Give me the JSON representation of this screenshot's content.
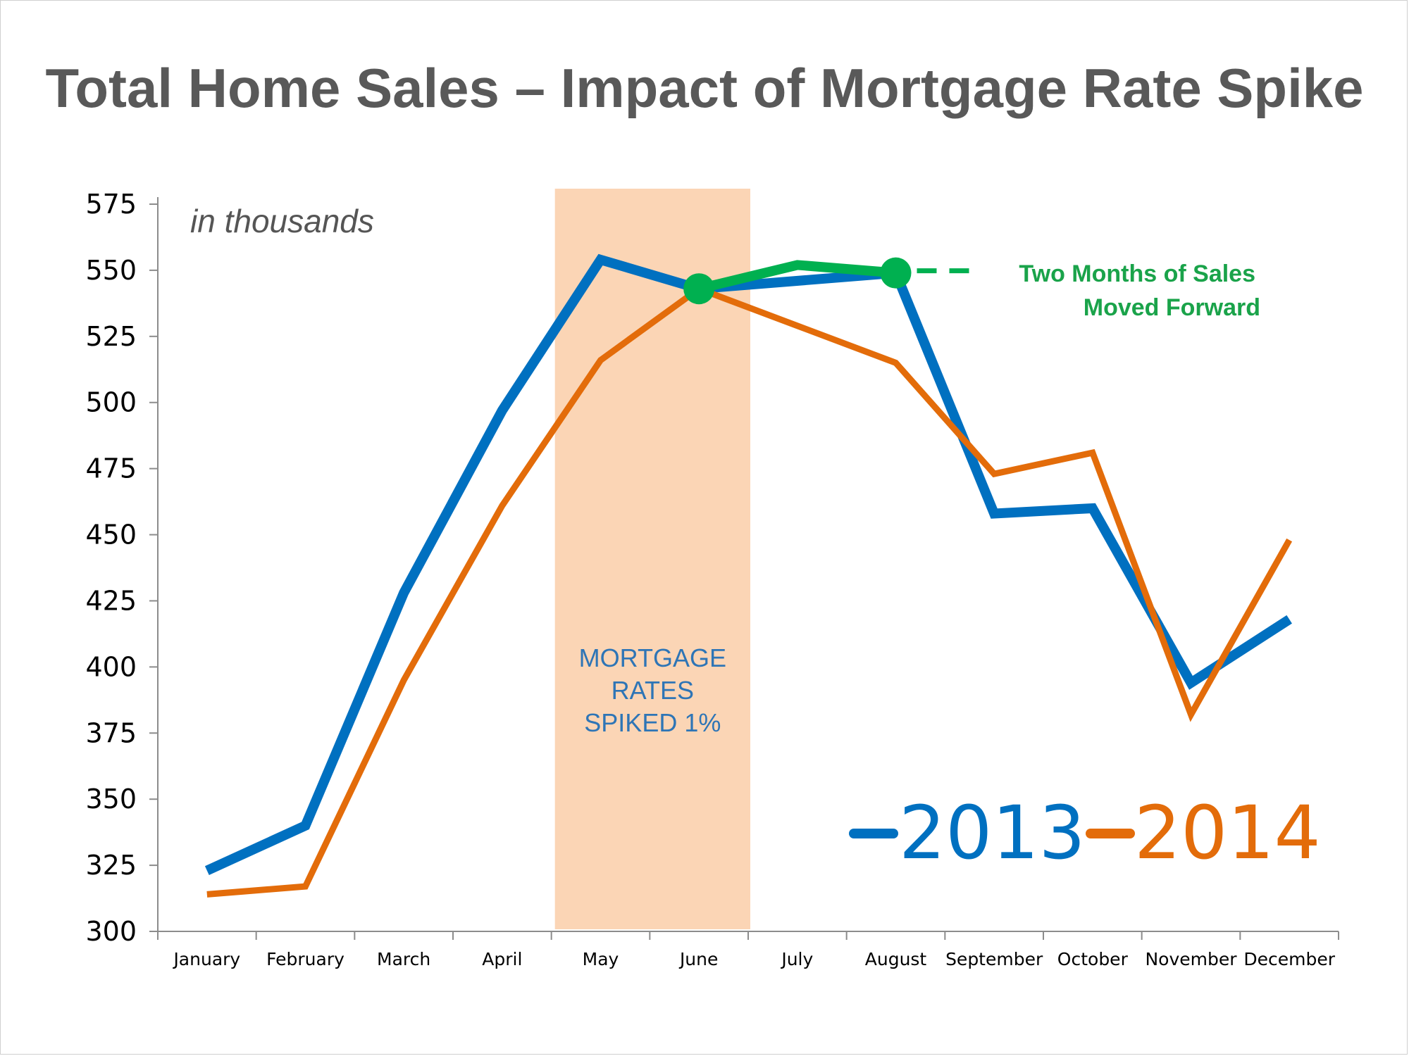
{
  "chart_data": {
    "type": "line",
    "title": "Total Home Sales – Impact of Mortgage Rate Spike",
    "units_label": "in thousands",
    "categories": [
      "January",
      "February",
      "March",
      "April",
      "May",
      "June",
      "July",
      "August",
      "September",
      "October",
      "November",
      "December"
    ],
    "ylim": [
      300,
      575
    ],
    "yticks": [
      300,
      325,
      350,
      375,
      400,
      425,
      450,
      475,
      500,
      525,
      550,
      575
    ],
    "series": [
      {
        "name": "2013",
        "color": "#0070c0",
        "values": [
          323,
          340,
          428,
          497,
          554,
          543,
          null,
          549,
          458,
          460,
          394,
          418
        ]
      },
      {
        "name": "2014",
        "color": "#e36c0a",
        "values": [
          314,
          317,
          395,
          461,
          516,
          543,
          529,
          515,
          473,
          481,
          382,
          448
        ]
      }
    ],
    "moved_forward": {
      "color": "#00b050",
      "label_line1": "Two Months of Sales",
      "label_line2": "Moved Forward",
      "points": [
        {
          "category": "June",
          "value": 543
        },
        {
          "category": "July",
          "value": 552
        },
        {
          "category": "August",
          "value": 549
        }
      ]
    },
    "shaded_region": {
      "from": "May",
      "to": "June",
      "color": "#fbd5b5",
      "label_lines": [
        "MORTGAGE",
        "RATES",
        "SPIKED 1%"
      ]
    },
    "grid": false,
    "legend_position": "bottom-right"
  }
}
